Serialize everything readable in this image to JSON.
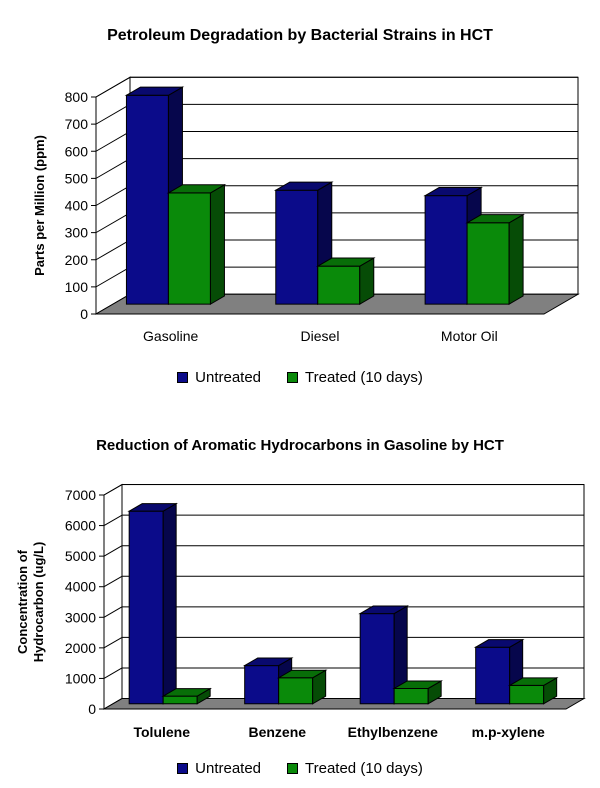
{
  "colors": {
    "untreated": "#0b0b8a",
    "treated": "#0a8a0a",
    "floor": "#808080"
  },
  "chart_data": [
    {
      "type": "bar",
      "title": "Petroleum Degradation by Bacterial Strains in HCT",
      "xlabel": "",
      "ylabel": "Parts per Million (ppm)",
      "categories": [
        "Gasoline",
        "Diesel",
        "Motor Oil"
      ],
      "series": [
        {
          "name": "Untreated",
          "values": [
            770,
            420,
            400
          ]
        },
        {
          "name": "Treated (10 days)",
          "values": [
            410,
            140,
            300
          ]
        }
      ],
      "ylim": [
        0,
        800
      ],
      "yticks": [
        "0",
        "100",
        "200",
        "300",
        "400",
        "500",
        "600",
        "700",
        "800"
      ],
      "grid": true,
      "legend": "bottom",
      "category_bold": false
    },
    {
      "type": "bar",
      "title": "Reduction of Aromatic Hydrocarbons in Gasoline by HCT",
      "xlabel": "",
      "ylabel": [
        "Concentration of",
        "Hydrocarbon (ug/L)"
      ],
      "categories": [
        "Tolulene",
        "Benzene",
        "Ethylbenzene",
        "m.p-xylene"
      ],
      "series": [
        {
          "name": "Untreated",
          "values": [
            6300,
            1250,
            2950,
            1850
          ]
        },
        {
          "name": "Treated (10 days)",
          "values": [
            250,
            850,
            500,
            600
          ]
        }
      ],
      "ylim": [
        0,
        7000
      ],
      "yticks": [
        "0",
        "1000",
        "2000",
        "3000",
        "4000",
        "5000",
        "6000",
        "7000"
      ],
      "grid": true,
      "legend": "bottom",
      "category_bold": true
    }
  ]
}
